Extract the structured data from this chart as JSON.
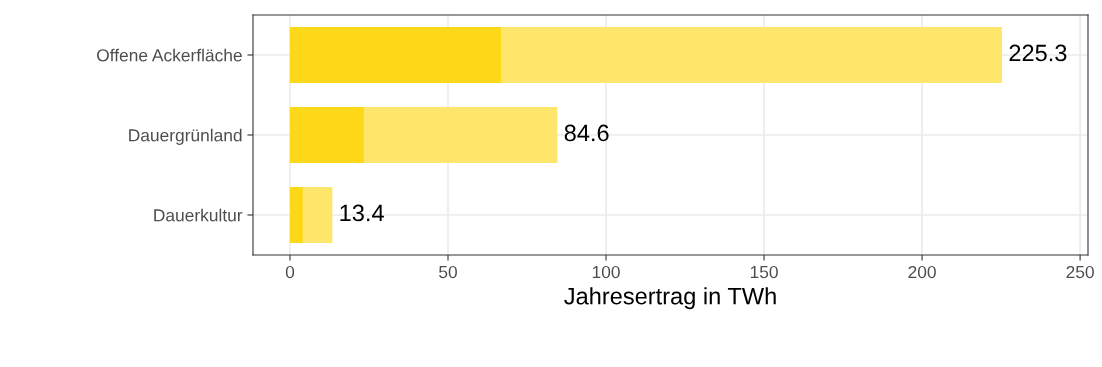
{
  "chart_data": {
    "type": "bar",
    "orientation": "horizontal",
    "stacked": true,
    "categories": [
      "Offene Ackerfläche",
      "Dauergrünland",
      "Dauerkultur"
    ],
    "series": [
      {
        "color": "#fdd819",
        "values": [
          66.8,
          23.4,
          4.1
        ]
      },
      {
        "color": "#fee66b",
        "values": [
          158.5,
          61.2,
          9.3
        ]
      }
    ],
    "totals": [
      "225.3",
      "84.6",
      "13.4"
    ],
    "xlabel": "Jahresertrag in TWh",
    "xlim": [
      -11.7,
      252.5
    ],
    "xticks": [
      0,
      50,
      100,
      150,
      200,
      250
    ],
    "grid": true,
    "legend": false
  }
}
